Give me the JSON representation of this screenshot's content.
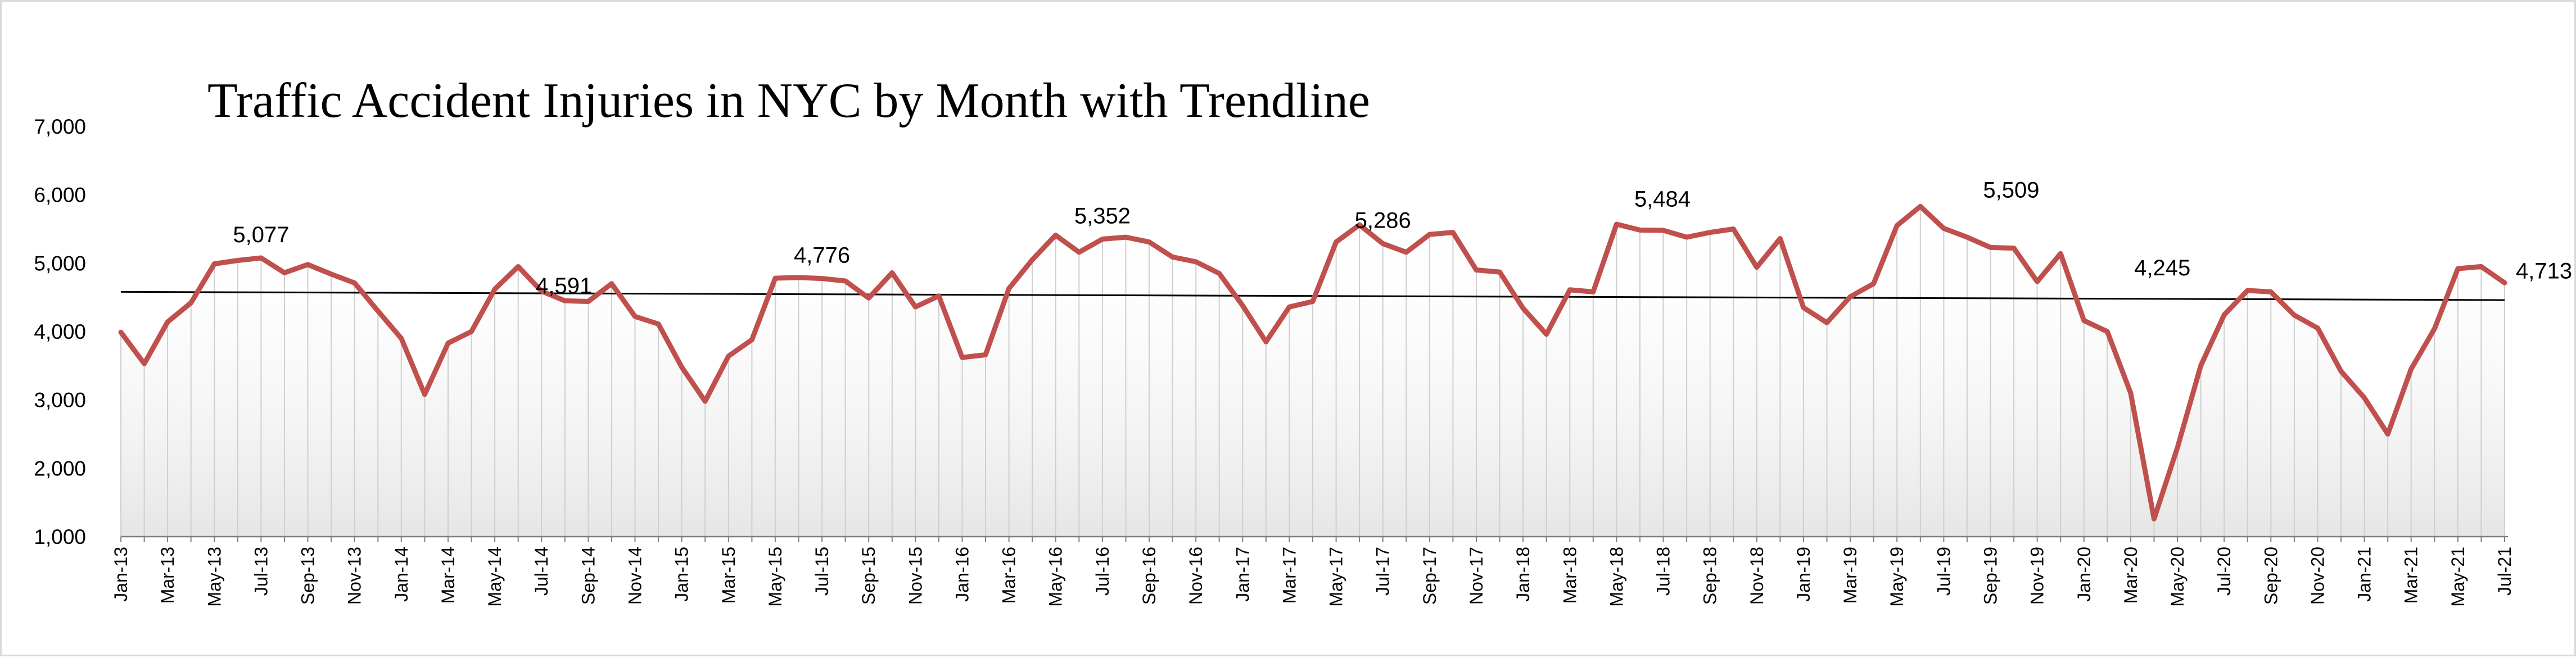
{
  "chart_data": {
    "type": "line",
    "title": "Traffic Accident Injuries in NYC  by Month with  Trendline",
    "xlabel": "",
    "ylabel": "",
    "ylim": [
      1000,
      7000
    ],
    "yticks": [
      "1,000",
      "2,000",
      "3,000",
      "4,000",
      "5,000",
      "6,000",
      "7,000"
    ],
    "grid": "vertical drop lines at each month",
    "legend": "none",
    "line_color": "#c0504d",
    "trend_color": "#000000",
    "x": [
      "Jan-13",
      "Feb-13",
      "Mar-13",
      "Apr-13",
      "May-13",
      "Jun-13",
      "Jul-13",
      "Aug-13",
      "Sep-13",
      "Oct-13",
      "Nov-13",
      "Dec-13",
      "Jan-14",
      "Feb-14",
      "Mar-14",
      "Apr-14",
      "May-14",
      "Jun-14",
      "Jul-14",
      "Aug-14",
      "Sep-14",
      "Oct-14",
      "Nov-14",
      "Dec-14",
      "Jan-15",
      "Feb-15",
      "Mar-15",
      "Apr-15",
      "May-15",
      "Jun-15",
      "Jul-15",
      "Aug-15",
      "Sep-15",
      "Oct-15",
      "Nov-15",
      "Dec-15",
      "Jan-16",
      "Feb-16",
      "Mar-16",
      "Apr-16",
      "May-16",
      "Jun-16",
      "Jul-16",
      "Aug-16",
      "Sep-16",
      "Oct-16",
      "Nov-16",
      "Dec-16",
      "Jan-17",
      "Feb-17",
      "Mar-17",
      "Apr-17",
      "May-17",
      "Jun-17",
      "Jul-17",
      "Aug-17",
      "Sep-17",
      "Oct-17",
      "Nov-17",
      "Dec-17",
      "Jan-18",
      "Feb-18",
      "Mar-18",
      "Apr-18",
      "May-18",
      "Jun-18",
      "Jul-18",
      "Aug-18",
      "Sep-18",
      "Oct-18",
      "Nov-18",
      "Dec-18",
      "Jan-19",
      "Feb-19",
      "Mar-19",
      "Apr-19",
      "May-19",
      "Jun-19",
      "Jul-19",
      "Aug-19",
      "Sep-19",
      "Oct-19",
      "Nov-19",
      "Dec-19",
      "Jan-20",
      "Feb-20",
      "Mar-20",
      "Apr-20",
      "May-20",
      "Jun-20",
      "Jul-20",
      "Aug-20",
      "Sep-20",
      "Oct-20",
      "Nov-20",
      "Dec-20",
      "Jan-21",
      "Feb-21",
      "Mar-21",
      "Apr-21",
      "May-21",
      "Jun-21",
      "Jul-21"
    ],
    "xticks_shown": [
      "Jan-13",
      "Mar-13",
      "May-13",
      "Jul-13",
      "Sep-13",
      "Nov-13",
      "Jan-14",
      "Mar-14",
      "May-14",
      "Jul-14",
      "Sep-14",
      "Nov-14",
      "Jan-15",
      "Mar-15",
      "May-15",
      "Jul-15",
      "Sep-15",
      "Nov-15",
      "Jan-16",
      "Mar-16",
      "May-16",
      "Jul-16",
      "Sep-16",
      "Nov-16",
      "Jan-17",
      "Mar-17",
      "May-17",
      "Jul-17",
      "Sep-17",
      "Nov-17",
      "Jan-18",
      "Mar-18",
      "May-18",
      "Jul-18",
      "Sep-18",
      "Nov-18",
      "Jan-19",
      "Mar-19",
      "May-19",
      "Jul-19",
      "Sep-19",
      "Nov-19",
      "Jan-20",
      "Mar-20",
      "May-20",
      "Jul-20",
      "Sep-20",
      "Nov-20",
      "Jan-21",
      "Mar-21",
      "May-21",
      "Jul-21"
    ],
    "values": [
      3990,
      3530,
      4140,
      4420,
      4990,
      5040,
      5077,
      4860,
      4980,
      4840,
      4710,
      4300,
      3900,
      3080,
      3830,
      4000,
      4620,
      4950,
      4591,
      4450,
      4440,
      4700,
      4220,
      4110,
      3480,
      2980,
      3640,
      3880,
      4780,
      4790,
      4776,
      4740,
      4490,
      4860,
      4360,
      4520,
      3620,
      3660,
      4630,
      5050,
      5410,
      5160,
      5352,
      5380,
      5310,
      5090,
      5020,
      4850,
      4380,
      3850,
      4360,
      4440,
      5310,
      5560,
      5286,
      5160,
      5420,
      5450,
      4900,
      4870,
      4340,
      3960,
      4610,
      4580,
      5570,
      5484,
      5480,
      5380,
      5450,
      5500,
      4940,
      5360,
      4350,
      4130,
      4510,
      4700,
      5550,
      5830,
      5509,
      5380,
      5230,
      5220,
      4730,
      5140,
      4160,
      4000,
      3100,
      1260,
      2300,
      3500,
      4245,
      4600,
      4580,
      4240,
      4050,
      3420,
      3030,
      2500,
      3450,
      4040,
      4920,
      4950,
      4713
    ],
    "data_labels": [
      {
        "x": "Jul-13",
        "text": "5,077"
      },
      {
        "x": "Jul-14",
        "text": "4,591"
      },
      {
        "x": "Jul-15",
        "text": "4,776"
      },
      {
        "x": "Jul-16",
        "text": "5,352"
      },
      {
        "x": "Jul-17",
        "text": "5,286"
      },
      {
        "x": "Jun-18",
        "text": "5,484"
      },
      {
        "x": "Jul-19",
        "text": "5,509"
      },
      {
        "x": "Jul-20",
        "text": "4,245"
      },
      {
        "x": "Jul-21",
        "text": "4,713"
      }
    ],
    "trendline": {
      "start": 4580,
      "end": 4460
    }
  }
}
